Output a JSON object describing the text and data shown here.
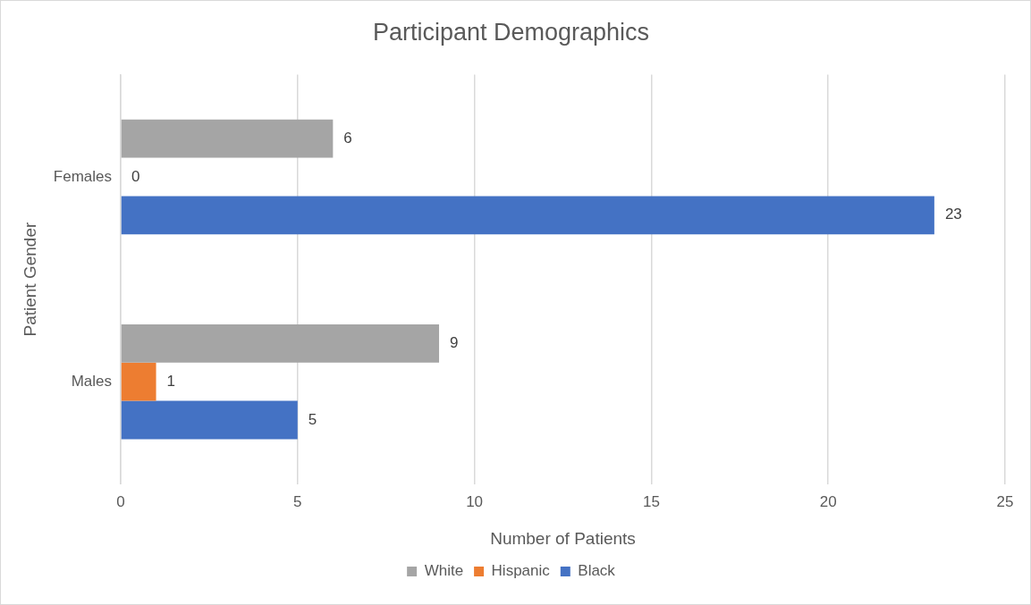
{
  "chart_data": {
    "type": "bar",
    "orientation": "horizontal",
    "title": "Participant Demographics",
    "xlabel": "Number of Patients",
    "ylabel": "Patient Gender",
    "categories": [
      "Females",
      "Males"
    ],
    "series": [
      {
        "name": "White",
        "color": "#a5a5a5",
        "values": [
          6,
          9
        ]
      },
      {
        "name": "Hispanic",
        "color": "#ed7d31",
        "values": [
          0,
          1
        ]
      },
      {
        "name": "Black",
        "color": "#4472c4",
        "values": [
          23,
          5
        ]
      }
    ],
    "xlim": [
      0,
      25
    ],
    "xticks": [
      0,
      5,
      10,
      15,
      20,
      25
    ],
    "grid": "x",
    "legend": "bottom",
    "data_labels": true
  }
}
